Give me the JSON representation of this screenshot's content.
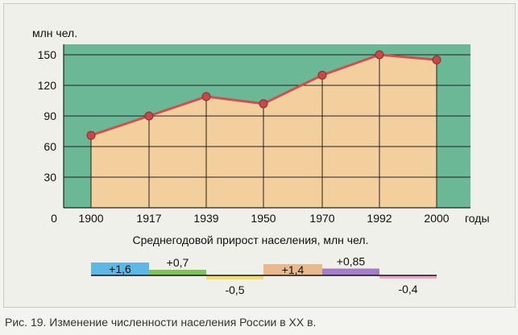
{
  "colors": {
    "plot_bg": "#6ab895",
    "area_fill": "#f2cf9c",
    "line": "#d0504e",
    "marker": "#c9474a",
    "grid": "#222222"
  },
  "chart_data": [
    {
      "type": "area",
      "title": "",
      "xlabel": "годы",
      "ylabel": "млн чел.",
      "x_origin_label": "0",
      "ylim": [
        0,
        150
      ],
      "yticks": [
        30,
        60,
        90,
        120,
        150
      ],
      "categories": [
        "1900",
        "1917",
        "1939",
        "1950",
        "1970",
        "1992",
        "2000"
      ],
      "series": [
        {
          "values": [
            71,
            90,
            109,
            102,
            130,
            150,
            145
          ]
        }
      ]
    },
    {
      "type": "bar",
      "title": "Среднегодовой прирост населения, млн  чел.",
      "bars": [
        {
          "label": "+1,6",
          "value": 1.6,
          "color": "#5fb8e4"
        },
        {
          "label": "+0,7",
          "value": 0.7,
          "color": "#7fc45b"
        },
        {
          "label": "-0,5",
          "value": -0.5,
          "color": "#f2dc6c"
        },
        {
          "label": "+1,4",
          "value": 1.4,
          "color": "#e9b98d"
        },
        {
          "label": "+0,85",
          "value": 0.85,
          "color": "#a57cc9"
        },
        {
          "label": "-0,4",
          "value": -0.4,
          "color": "#f0a3c9"
        }
      ]
    }
  ],
  "caption": "Рис. 19. Изменение численности населения России в XX в."
}
